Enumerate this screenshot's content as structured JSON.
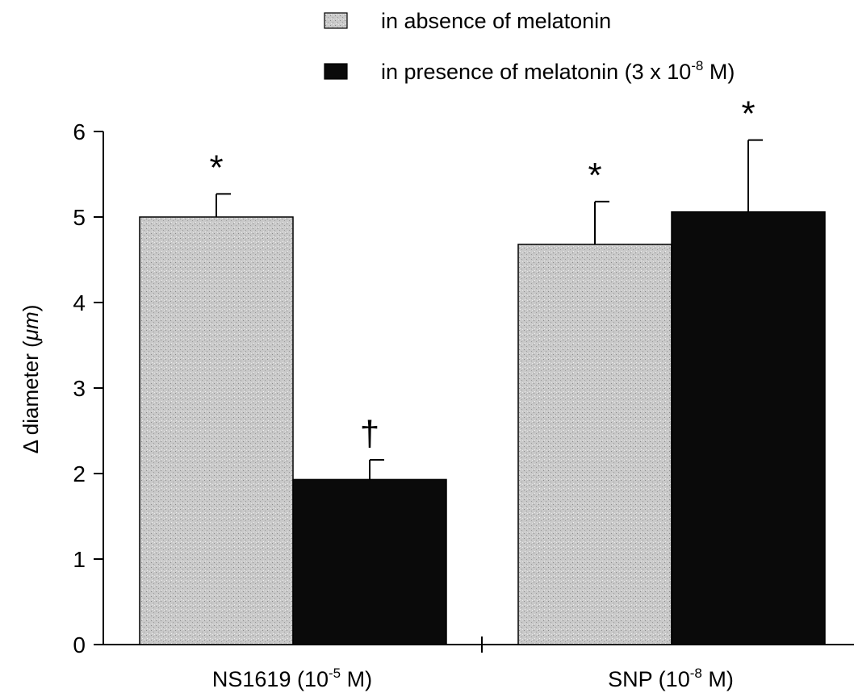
{
  "colors": {
    "absence_fill": "#c9c9c9",
    "presence_fill": "#0a0a0a",
    "axis": "#000000"
  },
  "chart_data": {
    "type": "bar",
    "categories": [
      {
        "label": "NS1619 (10",
        "sup": "-5",
        "suffix": " M)"
      },
      {
        "label": "SNP (10",
        "sup": "-8",
        "suffix": " M)"
      }
    ],
    "series": [
      {
        "name": "in absence of melatonin",
        "values": [
          5.0,
          4.68
        ],
        "errors": [
          0.27,
          0.5
        ],
        "markers": [
          "*",
          "*"
        ]
      },
      {
        "name": "in presence of melatonin (3 x 10",
        "name_sup": "-8",
        "name_suffix": " M)",
        "values": [
          1.93,
          5.06
        ],
        "errors": [
          0.23,
          0.84
        ],
        "markers": [
          "†",
          "*"
        ]
      }
    ],
    "ylabel_symbol": "Δ",
    "ylabel": " diameter (",
    "ylabel_unit": "μm",
    "ylabel_suffix": ")",
    "ylim": [
      0,
      6
    ],
    "yticks": [
      "0",
      "1",
      "2",
      "3",
      "4",
      "5",
      "6"
    ],
    "grid": false,
    "legend_position": "top"
  }
}
